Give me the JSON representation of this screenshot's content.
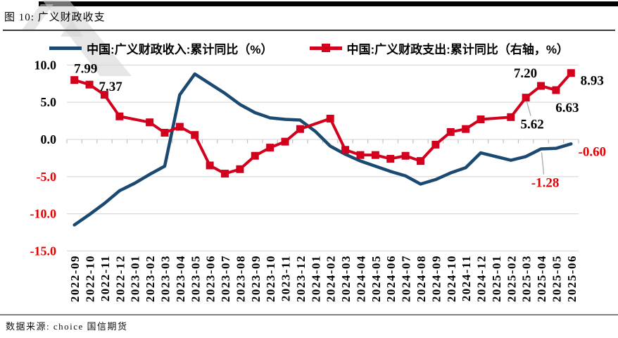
{
  "figure": {
    "title": "图 10: 广义财政收支",
    "source": "数据来源: choice 国信期货"
  },
  "legend": [
    {
      "label": "中国:广义财政收入:累计同比（%）",
      "color": "#1a4971",
      "marker": "line"
    },
    {
      "label": "中国:广义财政支出:累计同比（右轴，%）",
      "color": "#d2001c",
      "marker": "line-square"
    }
  ],
  "chart_data": {
    "type": "line",
    "title": "广义财政收支",
    "xlabel": "",
    "ylabel": "",
    "ylim": [
      -15,
      10
    ],
    "grid": true,
    "legend_position": "top",
    "y_ticks": [
      10.0,
      5.0,
      0.0,
      -5.0,
      -10.0,
      -15.0
    ],
    "y_tick_labels": [
      "10.0",
      "5.0",
      "0.0",
      "-5.0",
      "-10.0",
      "-15.0"
    ],
    "categories": [
      "2022-09",
      "2022-10",
      "2022-11",
      "2022-12",
      "2023-01",
      "2023-02",
      "2023-03",
      "2023-04",
      "2023-05",
      "2023-06",
      "2023-07",
      "2023-08",
      "2023-09",
      "2023-10",
      "2023-11",
      "2023-12",
      "2024-01",
      "2024-02",
      "2024-03",
      "2024-04",
      "2024-05",
      "2024-06",
      "2024-07",
      "2024-08",
      "2024-09",
      "2024-10",
      "2024-11",
      "2024-12",
      "2025-01",
      "2025-02",
      "2025-03",
      "2025-04",
      "2025-05",
      "2025-06"
    ],
    "series": [
      {
        "name": "中国:广义财政收入:累计同比（%）",
        "axis": "left",
        "color": "#1a4971",
        "marker": "none",
        "values": [
          -11.5,
          -10.1,
          -8.6,
          -6.9,
          -5.9,
          -4.7,
          -3.6,
          6.0,
          8.8,
          7.5,
          6.2,
          4.7,
          3.6,
          2.9,
          2.7,
          2.6,
          1.1,
          -0.9,
          -2.0,
          -2.9,
          -3.6,
          -4.3,
          -4.9,
          -6.0,
          -5.4,
          -4.5,
          -3.8,
          -1.8,
          -2.3,
          -2.8,
          -2.3,
          -1.28,
          -1.2,
          -0.6
        ]
      },
      {
        "name": "中国:广义财政支出:累计同比（右轴，%）",
        "axis": "right",
        "color": "#d2001c",
        "marker": "square",
        "values": [
          7.99,
          7.37,
          6.0,
          3.1,
          null,
          2.3,
          0.9,
          1.7,
          0.6,
          -3.5,
          -4.6,
          -4.0,
          -2.2,
          -1.1,
          -0.3,
          1.4,
          null,
          2.8,
          -1.4,
          -2.1,
          -2.1,
          -2.6,
          -2.2,
          -2.9,
          -0.7,
          1.0,
          1.4,
          2.7,
          null,
          3.0,
          5.62,
          7.2,
          6.63,
          8.93
        ]
      }
    ],
    "annotations": [
      {
        "series": 1,
        "category": "2022-09",
        "text": "7.99",
        "color": "#000000",
        "placement": "above",
        "leader": false
      },
      {
        "series": 1,
        "category": "2022-10",
        "text": "7.37",
        "color": "#000000",
        "placement": "right",
        "leader": false
      },
      {
        "series": 1,
        "category": "2025-03",
        "text": "5.62",
        "color": "#000000",
        "placement": "below-right-far",
        "leader": true
      },
      {
        "series": 1,
        "category": "2025-04",
        "text": "7.20",
        "color": "#000000",
        "placement": "above-left",
        "leader": false
      },
      {
        "series": 1,
        "category": "2025-05",
        "text": "6.63",
        "color": "#000000",
        "placement": "below-right",
        "leader": false
      },
      {
        "series": 1,
        "category": "2025-06",
        "text": "8.93",
        "color": "#000000",
        "placement": "right-down",
        "leader": false
      },
      {
        "series": 0,
        "category": "2025-04",
        "text": "-1.28",
        "color": "#e60000",
        "placement": "below",
        "leader": true
      },
      {
        "series": 0,
        "category": "2025-06",
        "text": "-0.60",
        "color": "#e60000",
        "placement": "right-down",
        "leader": false
      }
    ],
    "colors": {
      "grid": "#d9d9d9",
      "axis_tick": "#c0c0c0",
      "positive_label": "#000000",
      "negative_label": "#e60000",
      "leader_line": "#a8a8a8"
    }
  }
}
